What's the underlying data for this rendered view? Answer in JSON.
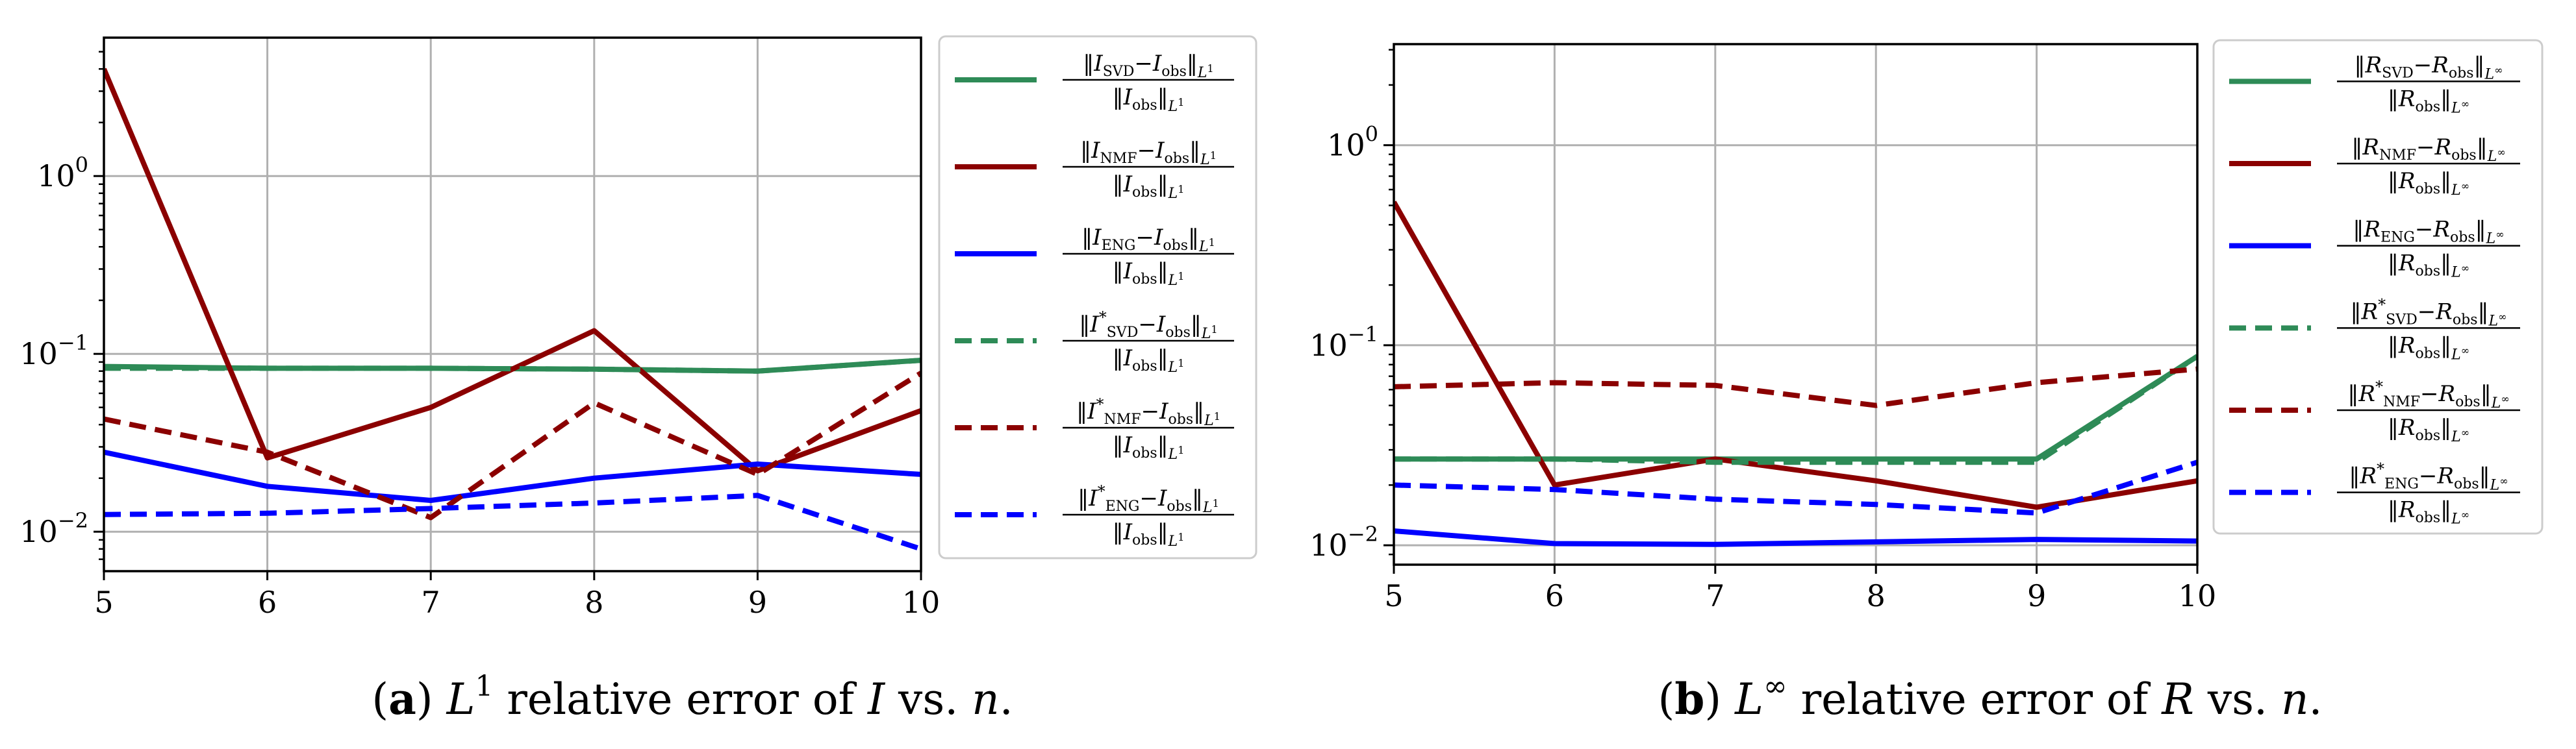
{
  "chart_data": [
    {
      "type": "line",
      "id": "a",
      "title": "",
      "xlabel": "",
      "ylabel": "",
      "yscale": "log",
      "xlim": [
        5,
        10
      ],
      "ylim": [
        0.006,
        6
      ],
      "grid": true,
      "legend_position": "right-outside",
      "x": [
        5,
        6,
        7,
        8,
        9,
        10
      ],
      "x_ticks": [
        "5",
        "6",
        "7",
        "8",
        "9",
        "10"
      ],
      "y_ticks": [
        {
          "base": "10",
          "exp": "0",
          "value": 1
        },
        {
          "base": "10",
          "exp": "−1",
          "value": 0.1
        },
        {
          "base": "10",
          "exp": "−2",
          "value": 0.01
        }
      ],
      "series": [
        {
          "name": "‖I_SVD − I_obs‖_L1 / ‖I_obs‖_L1",
          "num_var": "I",
          "num_sub": "SVD",
          "star": false,
          "norm": "1",
          "color": "#2e8b57",
          "dash": "solid",
          "values": [
            0.085,
            0.083,
            0.083,
            0.082,
            0.08,
            0.092
          ]
        },
        {
          "name": "‖I_NMF − I_obs‖_L1 / ‖I_obs‖_L1",
          "num_var": "I",
          "num_sub": "NMF",
          "star": false,
          "norm": "1",
          "color": "#8b0000",
          "dash": "solid",
          "values": [
            4.0,
            0.026,
            0.05,
            0.135,
            0.022,
            0.048
          ]
        },
        {
          "name": "‖I_ENG − I_obs‖_L1 / ‖I_obs‖_L1",
          "num_var": "I",
          "num_sub": "ENG",
          "star": false,
          "norm": "1",
          "color": "#0000ff",
          "dash": "solid",
          "values": [
            0.028,
            0.018,
            0.015,
            0.02,
            0.024,
            0.021
          ]
        },
        {
          "name": "‖I*_SVD − I_obs‖_L1 / ‖I_obs‖_L1",
          "num_var": "I",
          "num_sub": "SVD",
          "star": true,
          "norm": "1",
          "color": "#2e8b57",
          "dash": "dashed",
          "values": [
            0.083,
            0.083,
            0.083,
            0.082,
            0.08,
            0.092
          ]
        },
        {
          "name": "‖I*_NMF − I_obs‖_L1 / ‖I_obs‖_L1",
          "num_var": "I",
          "num_sub": "NMF",
          "star": true,
          "norm": "1",
          "color": "#8b0000",
          "dash": "dashed",
          "values": [
            0.043,
            0.028,
            0.012,
            0.053,
            0.021,
            0.078
          ]
        },
        {
          "name": "‖I*_ENG − I_obs‖_L1 / ‖I_obs‖_L1",
          "num_var": "I",
          "num_sub": "ENG",
          "star": true,
          "norm": "1",
          "color": "#0000ff",
          "dash": "dashed",
          "values": [
            0.0125,
            0.0127,
            0.0135,
            0.0145,
            0.016,
            0.008
          ]
        }
      ],
      "caption": {
        "label": "a",
        "text_before": " ",
        "math_var": "L",
        "math_sup": "1",
        "text_mid": " relative error of ",
        "math_var2": "I",
        "text_vs": " vs. ",
        "math_n": "n",
        "text_end": "."
      }
    },
    {
      "type": "line",
      "id": "b",
      "title": "",
      "xlabel": "",
      "ylabel": "",
      "yscale": "log",
      "xlim": [
        5,
        10
      ],
      "ylim": [
        0.008,
        3.2
      ],
      "grid": true,
      "legend_position": "right-outside",
      "x": [
        5,
        6,
        7,
        8,
        9,
        10
      ],
      "x_ticks": [
        "5",
        "6",
        "7",
        "8",
        "9",
        "10"
      ],
      "y_ticks": [
        {
          "base": "10",
          "exp": "0",
          "value": 1
        },
        {
          "base": "10",
          "exp": "−1",
          "value": 0.1
        },
        {
          "base": "10",
          "exp": "−2",
          "value": 0.01
        }
      ],
      "series": [
        {
          "name": "‖R_SVD − R_obs‖_L∞ / ‖R_obs‖_L∞",
          "num_var": "R",
          "num_sub": "SVD",
          "star": false,
          "norm": "∞",
          "color": "#2e8b57",
          "dash": "solid",
          "values": [
            0.027,
            0.027,
            0.027,
            0.027,
            0.027,
            0.088
          ]
        },
        {
          "name": "‖R_NMF − R_obs‖_L∞ / ‖R_obs‖_L∞",
          "num_var": "R",
          "num_sub": "NMF",
          "star": false,
          "norm": "∞",
          "color": "#8b0000",
          "dash": "solid",
          "values": [
            0.52,
            0.02,
            0.027,
            0.021,
            0.0155,
            0.021
          ]
        },
        {
          "name": "‖R_ENG − R_obs‖_L∞ / ‖R_obs‖_L∞",
          "num_var": "R",
          "num_sub": "ENG",
          "star": false,
          "norm": "∞",
          "color": "#0000ff",
          "dash": "solid",
          "values": [
            0.0118,
            0.0102,
            0.0101,
            0.0104,
            0.0107,
            0.0105
          ]
        },
        {
          "name": "‖R*_SVD − R_obs‖_L∞ / ‖R_obs‖_L∞",
          "num_var": "R",
          "num_sub": "SVD",
          "star": true,
          "norm": "∞",
          "color": "#2e8b57",
          "dash": "dashed",
          "values": [
            0.027,
            0.027,
            0.026,
            0.026,
            0.026,
            0.088
          ]
        },
        {
          "name": "‖R*_NMF − R_obs‖_L∞ / ‖R_obs‖_L∞",
          "num_var": "R",
          "num_sub": "NMF",
          "star": true,
          "norm": "∞",
          "color": "#8b0000",
          "dash": "dashed",
          "values": [
            0.062,
            0.065,
            0.063,
            0.05,
            0.065,
            0.076
          ]
        },
        {
          "name": "‖R*_ENG − R_obs‖_L∞ / ‖R_obs‖_L∞",
          "num_var": "R",
          "num_sub": "ENG",
          "star": true,
          "norm": "∞",
          "color": "#0000ff",
          "dash": "dashed",
          "values": [
            0.02,
            0.019,
            0.017,
            0.016,
            0.0145,
            0.026
          ]
        }
      ],
      "caption": {
        "label": "b",
        "text_before": " ",
        "math_var": "L",
        "math_sup": "∞",
        "text_mid": " relative error of ",
        "math_var2": "R",
        "text_vs": " vs. ",
        "math_n": "n",
        "text_end": "."
      }
    }
  ]
}
